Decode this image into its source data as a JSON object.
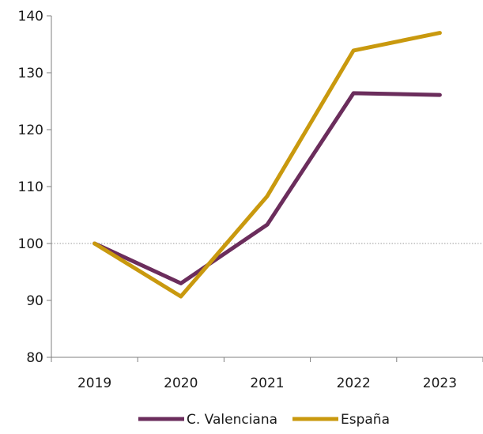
{
  "chart_data": {
    "type": "line",
    "categories": [
      "2019",
      "2020",
      "2021",
      "2022",
      "2023"
    ],
    "series": [
      {
        "name": "C. Valenciana",
        "values": [
          100,
          93,
          103.3,
          126.4,
          126.1
        ],
        "color": "#6b2d5c"
      },
      {
        "name": "España",
        "values": [
          100,
          90.7,
          108.3,
          133.9,
          137.0
        ],
        "color": "#c9990e"
      }
    ],
    "y_ticks": [
      "80",
      "90",
      "100",
      "110",
      "120",
      "130",
      "140"
    ],
    "ylim": [
      80,
      140
    ],
    "reference_line": 100,
    "reference_line_style": "dotted",
    "grid": false,
    "legend_position": "bottom-center",
    "title": "",
    "xlabel": "",
    "ylabel": ""
  }
}
